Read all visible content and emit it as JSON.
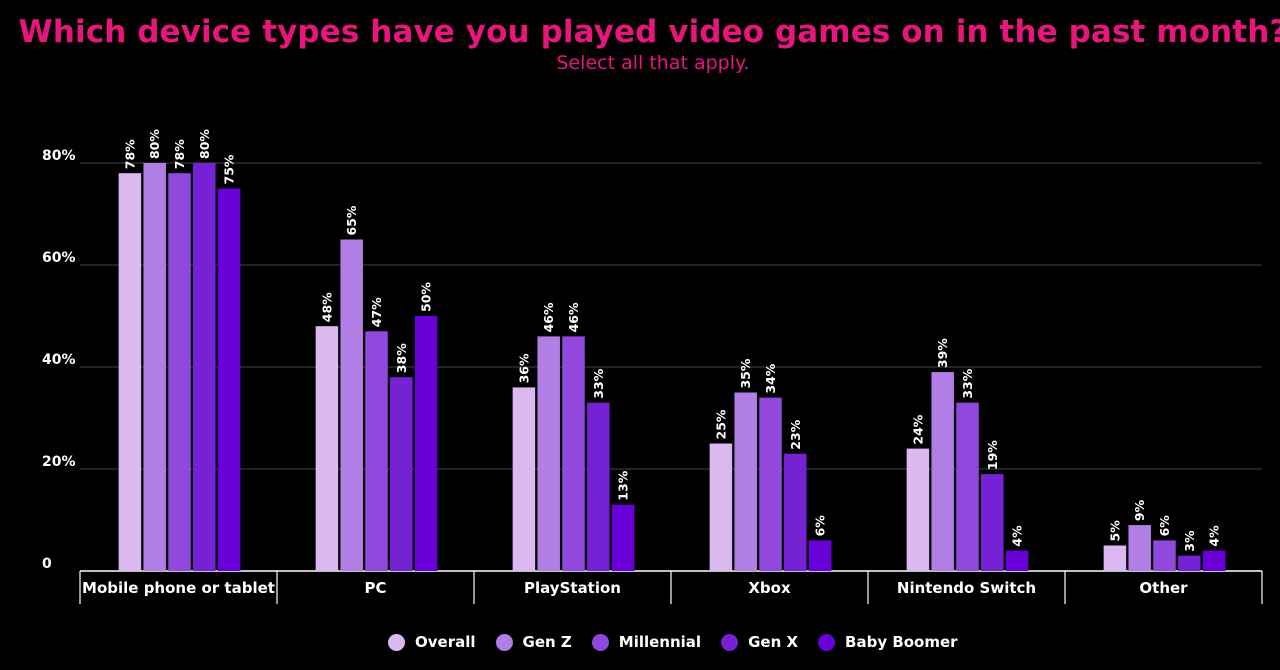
{
  "title": "Which device types have you played video games on in the past month?",
  "subtitle": "Select all that apply.",
  "chart_data": {
    "type": "bar",
    "title": "Which device types have you played video games on in the past month?",
    "subtitle": "Select all that apply.",
    "categories": [
      "Mobile phone or tablet",
      "PC",
      "PlayStation",
      "Xbox",
      "Nintendo Switch",
      "Other"
    ],
    "series": [
      {
        "name": "Overall",
        "color": "#dcb8f0",
        "values": [
          78,
          48,
          36,
          25,
          24,
          5
        ]
      },
      {
        "name": "Gen Z",
        "color": "#b07ee4",
        "values": [
          80,
          65,
          46,
          35,
          39,
          9
        ]
      },
      {
        "name": "Millennial",
        "color": "#9148dc",
        "values": [
          78,
          47,
          46,
          34,
          33,
          6
        ]
      },
      {
        "name": "Gen X",
        "color": "#7422d4",
        "values": [
          80,
          38,
          33,
          23,
          19,
          3
        ]
      },
      {
        "name": "Baby Boomer",
        "color": "#6a00d8",
        "values": [
          75,
          50,
          13,
          6,
          4,
          4
        ]
      }
    ],
    "data_labels": [
      [
        "78%",
        "80%",
        "78%",
        "80%",
        "75%"
      ],
      [
        "48%",
        "65%",
        "47%",
        "38%",
        "50%"
      ],
      [
        "36%",
        "46%",
        "46%",
        "33%",
        "13%"
      ],
      [
        "25%",
        "35%",
        "34%",
        "23%",
        "6%"
      ],
      [
        "24%",
        "39%",
        "33%",
        "19%",
        "4%"
      ],
      [
        "5%",
        "9%",
        "6%",
        "3%",
        "4%"
      ]
    ],
    "y_ticks": [
      {
        "value": 0,
        "label": "0"
      },
      {
        "value": 20,
        "label": "20%"
      },
      {
        "value": 40,
        "label": "40%"
      },
      {
        "value": 60,
        "label": "60%"
      },
      {
        "value": 80,
        "label": "80%"
      }
    ],
    "ylim": [
      0,
      80
    ],
    "grid": true,
    "legend_position": "bottom",
    "xlabel": "",
    "ylabel": ""
  }
}
